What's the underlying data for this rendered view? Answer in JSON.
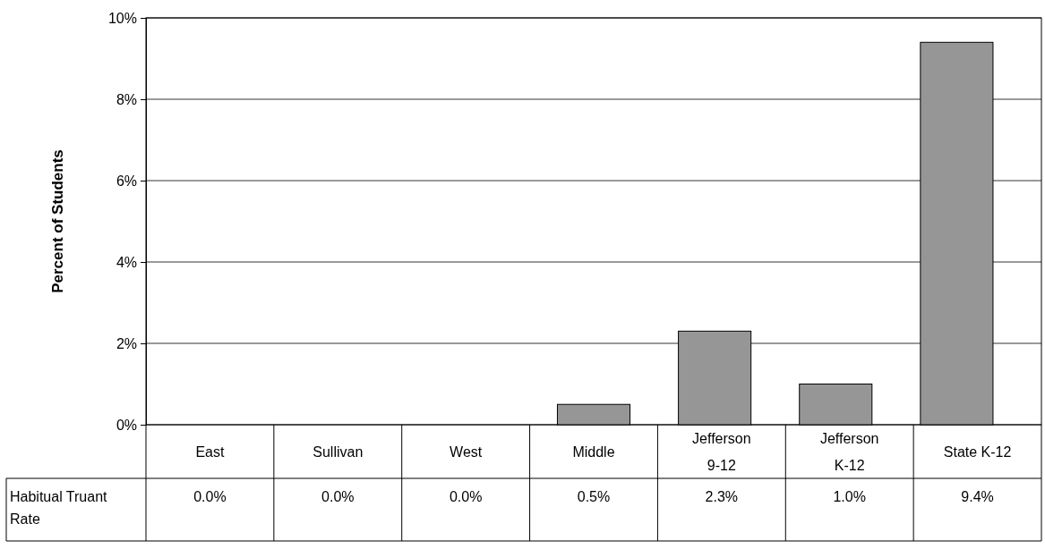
{
  "chart_data": {
    "type": "bar",
    "ylabel": "Percent of Students",
    "categories": [
      "East",
      "Sullivan",
      "West",
      "Middle",
      "Jefferson 9-12",
      "Jefferson K-12",
      "State K-12"
    ],
    "series": [
      {
        "name": "Habitual Truant Rate",
        "color": "#969696",
        "values": [
          0,
          0,
          0,
          0.5,
          2.3,
          1.0,
          9.4
        ],
        "value_labels": [
          "0.0%",
          "0.0%",
          "0.0%",
          "0.5%",
          "2.3%",
          "1.0%",
          "9.4%"
        ]
      }
    ],
    "ylim": [
      0,
      10
    ],
    "yticks": [
      {
        "value": 0,
        "label": "0%"
      },
      {
        "value": 2,
        "label": "2%"
      },
      {
        "value": 4,
        "label": "4%"
      },
      {
        "value": 6,
        "label": "6%"
      },
      {
        "value": 8,
        "label": "8%"
      },
      {
        "value": 10,
        "label": "10%"
      }
    ],
    "grid": "y",
    "legend": "bottom"
  }
}
